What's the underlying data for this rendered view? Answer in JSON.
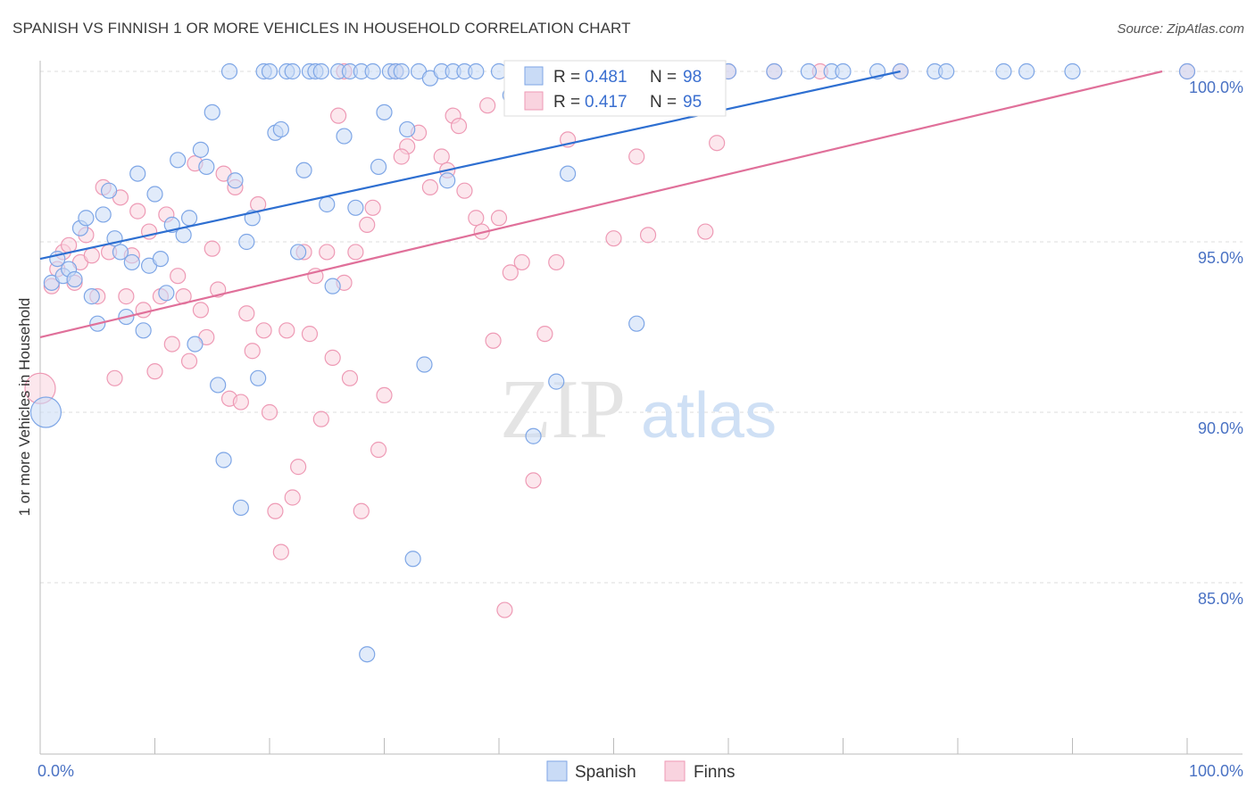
{
  "header": {
    "title": "SPANISH VS FINNISH 1 OR MORE VEHICLES IN HOUSEHOLD CORRELATION CHART",
    "source": "Source: ZipAtlas.com"
  },
  "watermark": {
    "zip": "ZIP",
    "atlas": "atlas"
  },
  "legend": {
    "items": [
      {
        "r_label": "R = ",
        "r_value": "0.481",
        "n_label": "N = ",
        "n_value": "98",
        "color": "#8fb3ec"
      },
      {
        "r_label": "R = ",
        "r_value": "0.417",
        "n_label": "N = ",
        "n_value": "95",
        "color": "#f4a6bf"
      }
    ]
  },
  "bottom_legend": [
    {
      "label": "Spanish",
      "color": "#8fb3ec"
    },
    {
      "label": "Finns",
      "color": "#f4a6bf"
    }
  ],
  "colors": {
    "spanish_fill": "#c9dbf6",
    "spanish_stroke": "#7ea6e6",
    "spanish_line": "#2e6fd1",
    "finns_fill": "#f9d3df",
    "finns_stroke": "#ee9ab5",
    "finns_line": "#e0709a",
    "grid": "#dddddd",
    "tick_text": "#4a72c4"
  },
  "chart_data": {
    "type": "scatter",
    "title": "SPANISH VS FINNISH 1 OR MORE VEHICLES IN HOUSEHOLD CORRELATION CHART",
    "xlabel": "",
    "ylabel": "1 or more Vehicles in Household",
    "xlim": [
      0,
      100
    ],
    "ylim": [
      80.5,
      100.8
    ],
    "x_tick_labels": [
      "0.0%",
      "100.0%"
    ],
    "y_ticks": [
      85,
      90,
      95,
      100
    ],
    "y_tick_labels": [
      "85.0%",
      "90.0%",
      "95.0%",
      "100.0%"
    ],
    "grid": true,
    "legend_position": "top-center",
    "series": [
      {
        "name": "Spanish",
        "r": 0.481,
        "n": 98,
        "trend": {
          "x": [
            0,
            75
          ],
          "y": [
            94.5,
            100.0
          ]
        },
        "points": [
          [
            0.5,
            90.0
          ],
          [
            1,
            93.8
          ],
          [
            1.5,
            94.5
          ],
          [
            2,
            94.0
          ],
          [
            2.5,
            94.2
          ],
          [
            3,
            93.9
          ],
          [
            3.5,
            95.4
          ],
          [
            4,
            95.7
          ],
          [
            4.5,
            93.4
          ],
          [
            5,
            92.6
          ],
          [
            5.5,
            95.8
          ],
          [
            6,
            96.5
          ],
          [
            6.5,
            95.1
          ],
          [
            7,
            94.7
          ],
          [
            7.5,
            92.8
          ],
          [
            8,
            94.4
          ],
          [
            8.5,
            97.0
          ],
          [
            9,
            92.4
          ],
          [
            9.5,
            94.3
          ],
          [
            10,
            96.4
          ],
          [
            10.5,
            94.5
          ],
          [
            11,
            93.5
          ],
          [
            11.5,
            95.5
          ],
          [
            12,
            97.4
          ],
          [
            12.5,
            95.2
          ],
          [
            13,
            95.7
          ],
          [
            13.5,
            92.0
          ],
          [
            14,
            97.7
          ],
          [
            14.5,
            97.2
          ],
          [
            15,
            98.8
          ],
          [
            15.5,
            90.8
          ],
          [
            16,
            88.6
          ],
          [
            16.5,
            100.0
          ],
          [
            17,
            96.8
          ],
          [
            17.5,
            87.2
          ],
          [
            18,
            95.0
          ],
          [
            18.5,
            95.7
          ],
          [
            19,
            91.0
          ],
          [
            19.5,
            100.0
          ],
          [
            20,
            100.0
          ],
          [
            20.5,
            98.2
          ],
          [
            21,
            98.3
          ],
          [
            21.5,
            100.0
          ],
          [
            22,
            100.0
          ],
          [
            22.5,
            94.7
          ],
          [
            23,
            97.1
          ],
          [
            23.5,
            100.0
          ],
          [
            24,
            100.0
          ],
          [
            24.5,
            100.0
          ],
          [
            25,
            96.1
          ],
          [
            25.5,
            93.7
          ],
          [
            26,
            100.0
          ],
          [
            26.5,
            98.1
          ],
          [
            27,
            100.0
          ],
          [
            27.5,
            96.0
          ],
          [
            28,
            100.0
          ],
          [
            28.5,
            82.9
          ],
          [
            29,
            100.0
          ],
          [
            29.5,
            97.2
          ],
          [
            30,
            98.8
          ],
          [
            30.5,
            100.0
          ],
          [
            31,
            100.0
          ],
          [
            31.5,
            100.0
          ],
          [
            32,
            98.3
          ],
          [
            32.5,
            85.7
          ],
          [
            33,
            100.0
          ],
          [
            33.5,
            91.4
          ],
          [
            34,
            99.8
          ],
          [
            35,
            100.0
          ],
          [
            35.5,
            96.8
          ],
          [
            36,
            100.0
          ],
          [
            37,
            100.0
          ],
          [
            38,
            100.0
          ],
          [
            40,
            100.0
          ],
          [
            42,
            100.0
          ],
          [
            43,
            89.3
          ],
          [
            44,
            100.0
          ],
          [
            45,
            90.9
          ],
          [
            48,
            100.0
          ],
          [
            50,
            100.0
          ],
          [
            52,
            92.6
          ],
          [
            55,
            100.0
          ],
          [
            57,
            100.0
          ],
          [
            60,
            100.0
          ],
          [
            64,
            100.0
          ],
          [
            67,
            100.0
          ],
          [
            69,
            100.0
          ],
          [
            70,
            100.0
          ],
          [
            73,
            100.0
          ],
          [
            75,
            100.0
          ],
          [
            78,
            100.0
          ],
          [
            79,
            100.0
          ],
          [
            84,
            100.0
          ],
          [
            86,
            100.0
          ],
          [
            90,
            100.0
          ],
          [
            100,
            100.0
          ],
          [
            41,
            99.3
          ],
          [
            46,
            97.0
          ]
        ]
      },
      {
        "name": "Finns",
        "r": 0.417,
        "n": 95,
        "trend": {
          "x": [
            0,
            100
          ],
          "y": [
            92.2,
            100.0
          ]
        },
        "points": [
          [
            0,
            90.7
          ],
          [
            1,
            93.7
          ],
          [
            1.5,
            94.2
          ],
          [
            2,
            94.7
          ],
          [
            2.5,
            94.9
          ],
          [
            3,
            93.8
          ],
          [
            3.5,
            94.4
          ],
          [
            4,
            95.2
          ],
          [
            4.5,
            94.6
          ],
          [
            5,
            93.4
          ],
          [
            5.5,
            96.6
          ],
          [
            6,
            94.7
          ],
          [
            6.5,
            91.0
          ],
          [
            7,
            96.3
          ],
          [
            7.5,
            93.4
          ],
          [
            8,
            94.6
          ],
          [
            8.5,
            95.9
          ],
          [
            9,
            93.0
          ],
          [
            9.5,
            95.3
          ],
          [
            10,
            91.2
          ],
          [
            10.5,
            93.4
          ],
          [
            11,
            95.8
          ],
          [
            11.5,
            92.0
          ],
          [
            12,
            94.0
          ],
          [
            12.5,
            93.4
          ],
          [
            13,
            91.5
          ],
          [
            13.5,
            97.3
          ],
          [
            14,
            93.0
          ],
          [
            14.5,
            92.2
          ],
          [
            15,
            94.8
          ],
          [
            15.5,
            93.6
          ],
          [
            16,
            97.0
          ],
          [
            16.5,
            90.4
          ],
          [
            17,
            96.6
          ],
          [
            17.5,
            90.3
          ],
          [
            18,
            92.9
          ],
          [
            18.5,
            91.8
          ],
          [
            19,
            96.1
          ],
          [
            19.5,
            92.4
          ],
          [
            20,
            90.0
          ],
          [
            20.5,
            87.1
          ],
          [
            21,
            85.9
          ],
          [
            21.5,
            92.4
          ],
          [
            22,
            87.5
          ],
          [
            22.5,
            88.4
          ],
          [
            23,
            94.7
          ],
          [
            23.5,
            92.3
          ],
          [
            24,
            94.0
          ],
          [
            24.5,
            89.8
          ],
          [
            25,
            94.7
          ],
          [
            25.5,
            91.6
          ],
          [
            26,
            98.7
          ],
          [
            26.5,
            93.8
          ],
          [
            27,
            91.0
          ],
          [
            27.5,
            94.7
          ],
          [
            28,
            87.1
          ],
          [
            28.5,
            95.5
          ],
          [
            29,
            96.0
          ],
          [
            29.5,
            88.9
          ],
          [
            30,
            90.5
          ],
          [
            31,
            100.0
          ],
          [
            32,
            97.8
          ],
          [
            33,
            98.2
          ],
          [
            34,
            96.6
          ],
          [
            35,
            97.5
          ],
          [
            35.5,
            97.1
          ],
          [
            36,
            98.7
          ],
          [
            36.5,
            98.4
          ],
          [
            37,
            96.5
          ],
          [
            38,
            95.7
          ],
          [
            38.5,
            95.3
          ],
          [
            39,
            99.0
          ],
          [
            39.5,
            92.1
          ],
          [
            40,
            95.7
          ],
          [
            40.5,
            84.2
          ],
          [
            41,
            94.1
          ],
          [
            42,
            94.4
          ],
          [
            43,
            88.0
          ],
          [
            44,
            92.3
          ],
          [
            45,
            94.4
          ],
          [
            46,
            98.0
          ],
          [
            48,
            100.0
          ],
          [
            50,
            95.1
          ],
          [
            52,
            97.5
          ],
          [
            53,
            95.2
          ],
          [
            56,
            100.0
          ],
          [
            58,
            95.3
          ],
          [
            59,
            97.9
          ],
          [
            60,
            100.0
          ],
          [
            64,
            100.0
          ],
          [
            68,
            100.0
          ],
          [
            75,
            100.0
          ],
          [
            100,
            100.0
          ],
          [
            26.5,
            100.0
          ],
          [
            31.5,
            97.5
          ]
        ]
      }
    ]
  }
}
